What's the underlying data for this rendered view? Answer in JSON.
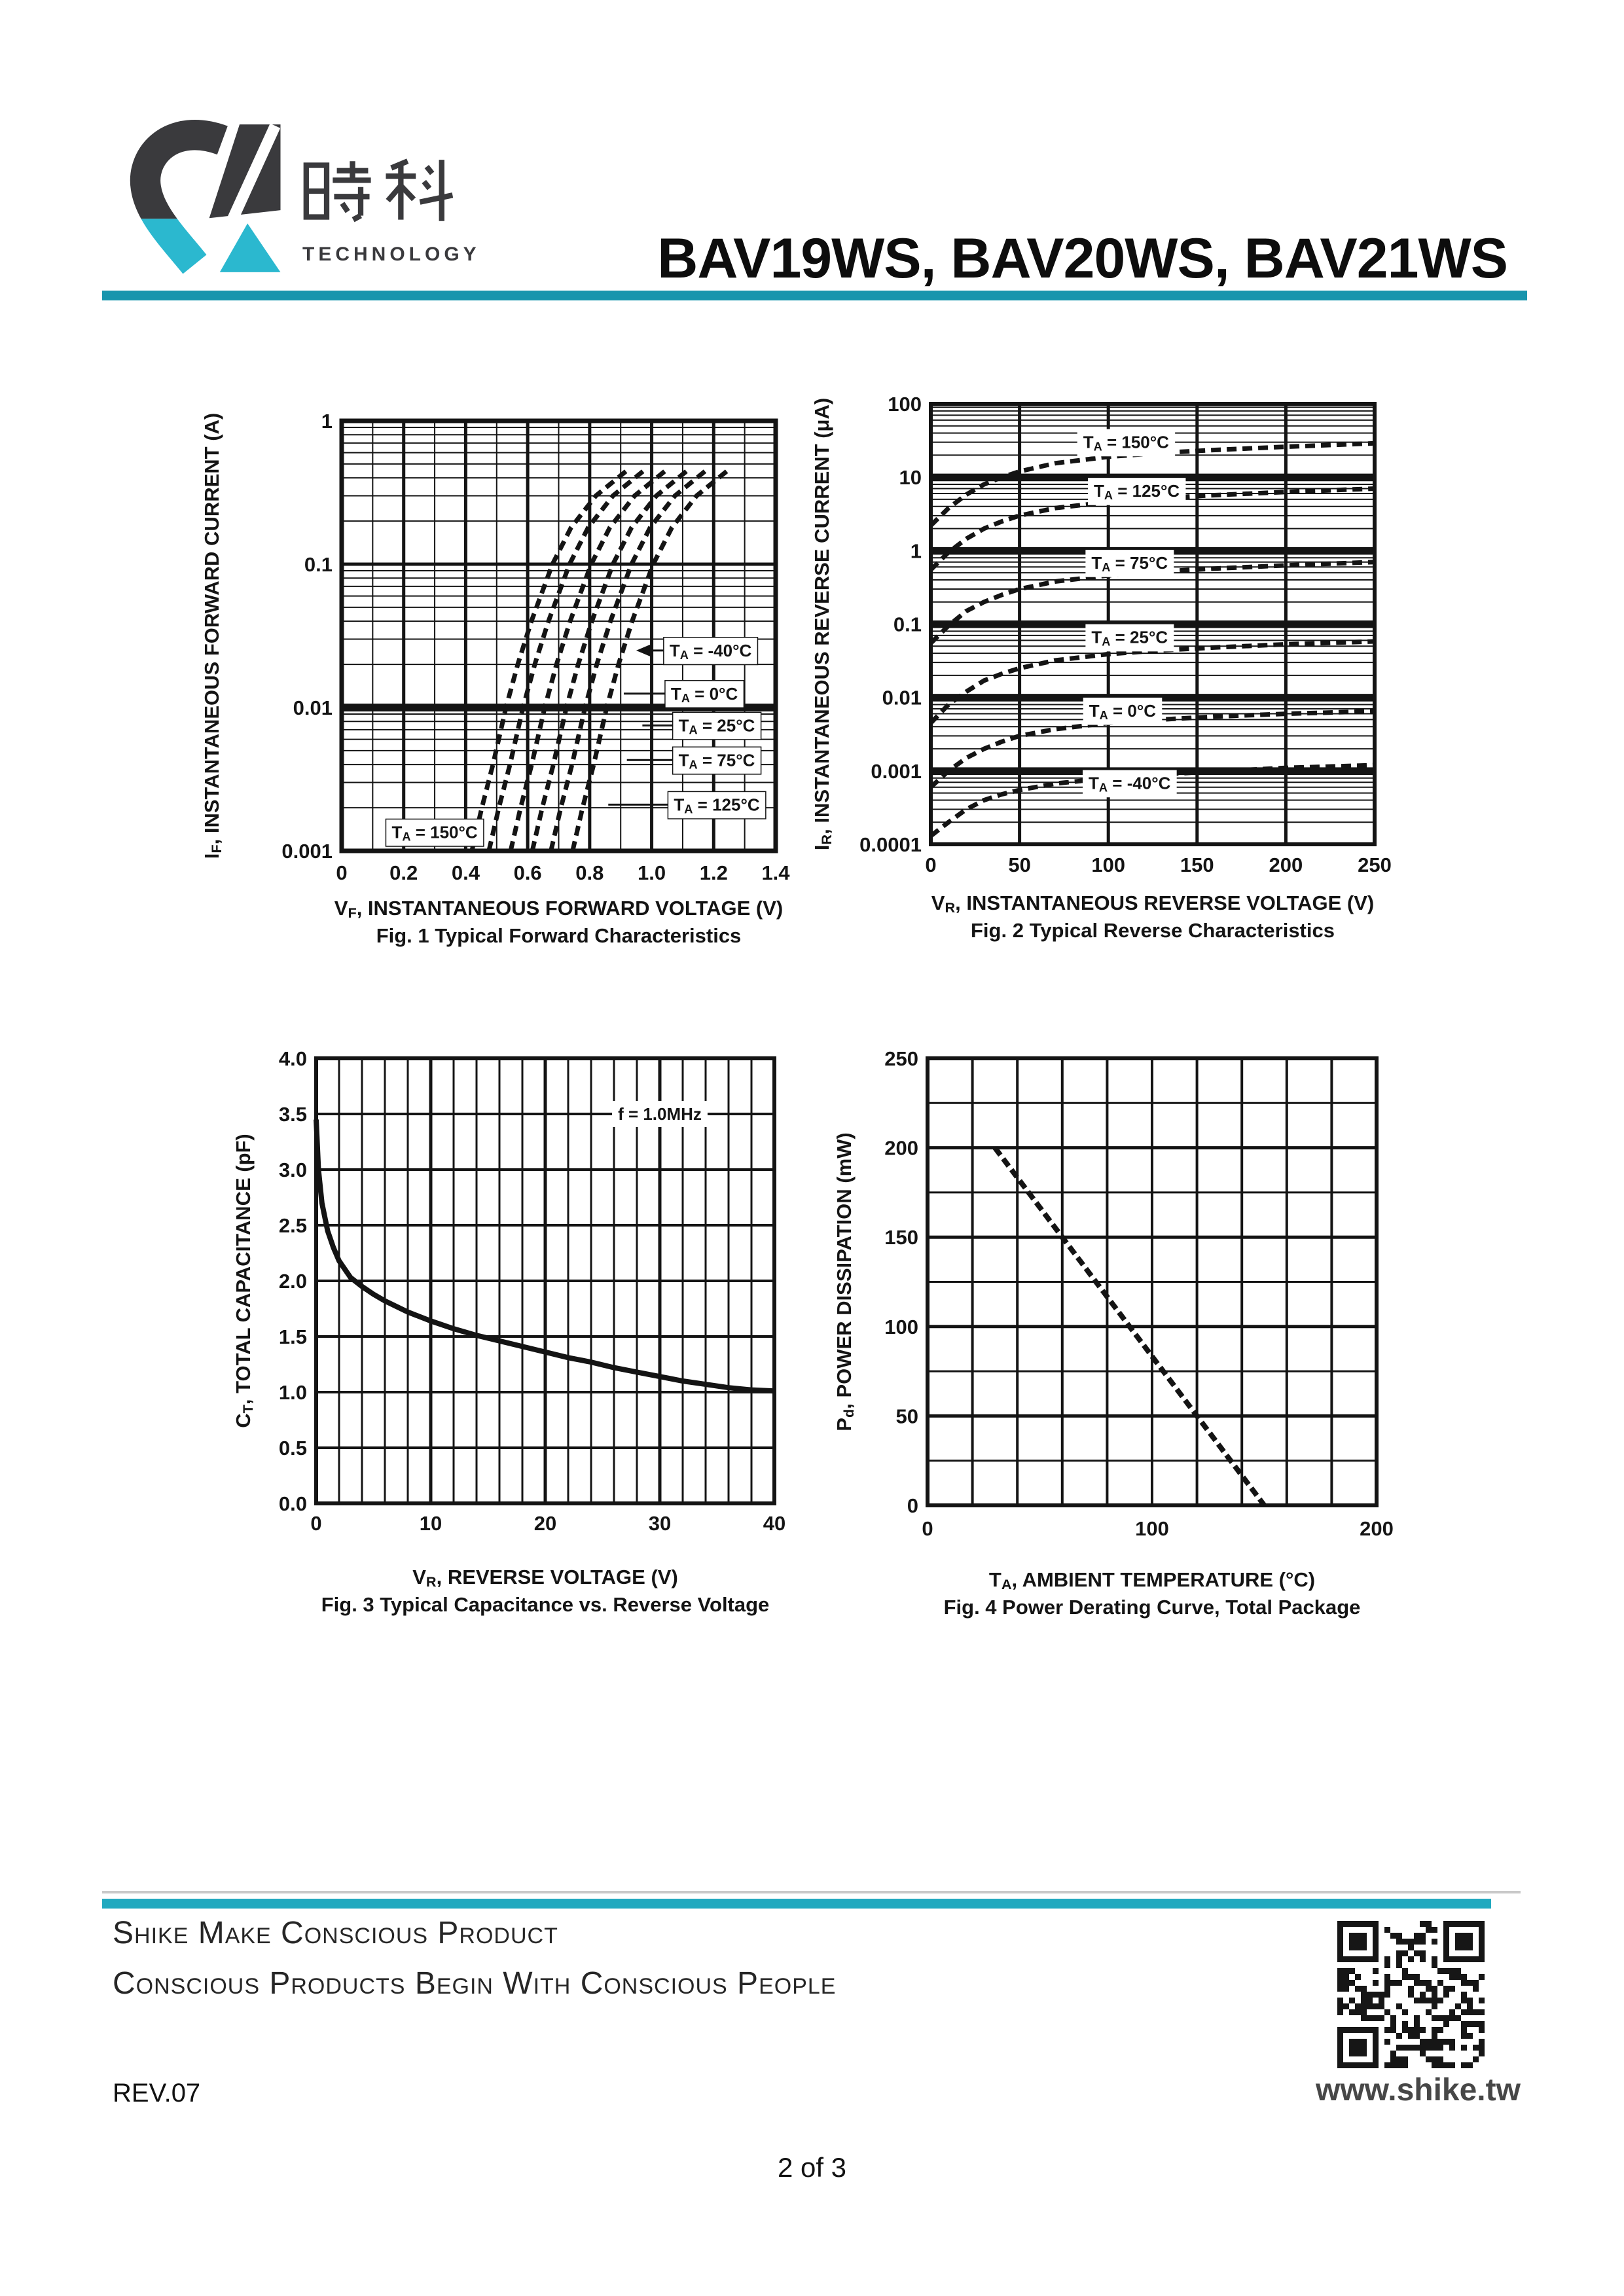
{
  "colors": {
    "accent_teal": "#1795ad",
    "accent_teal_light": "#21a9bf",
    "logo_dark": "#3a3a3d",
    "logo_cyan": "#2bb8cf",
    "ink": "#141414"
  },
  "header": {
    "logo_chinese": "時科",
    "logo_subtitle": "TECHNOLOGY",
    "title": "BAV19WS, BAV20WS, BAV21WS"
  },
  "chart_data": [
    {
      "id": "fig1",
      "type": "line",
      "title": "Fig. 1  Typical Forward Characteristics",
      "xlabel": "V~F~, INSTANTANEOUS FORWARD VOLTAGE (V)",
      "ylabel": "I~F~, INSTANTANEOUS FORWARD CURRENT (A)",
      "xlim": [
        0,
        1.4
      ],
      "ylim": [
        0.001,
        1
      ],
      "y_scale": "log",
      "grid": true,
      "legend_position": "in-plot-labels",
      "x_ticks": [
        {
          "v": 0,
          "label": "0"
        },
        {
          "v": 0.2,
          "label": "0.2"
        },
        {
          "v": 0.4,
          "label": "0.4"
        },
        {
          "v": 0.6,
          "label": "0.6"
        },
        {
          "v": 0.8,
          "label": "0.8"
        },
        {
          "v": 1.0,
          "label": "1.0"
        },
        {
          "v": 1.2,
          "label": "1.2"
        },
        {
          "v": 1.4,
          "label": "1.4"
        }
      ],
      "y_ticks": [
        {
          "v": 1,
          "label": "1"
        },
        {
          "v": 0.1,
          "label": "0.1"
        },
        {
          "v": 0.01,
          "label": "0.01"
        },
        {
          "v": 0.001,
          "label": "0.001"
        }
      ],
      "series": [
        {
          "name": "TA = 150°C",
          "points": [
            [
              0.42,
              0.001
            ],
            [
              0.452,
              0.002
            ],
            [
              0.488,
              0.004
            ],
            [
              0.53,
              0.01
            ],
            [
              0.568,
              0.02
            ],
            [
              0.612,
              0.04
            ],
            [
              0.68,
              0.1
            ],
            [
              0.74,
              0.18
            ],
            [
              0.82,
              0.3
            ],
            [
              0.92,
              0.45
            ]
          ]
        },
        {
          "name": "TA = 125°C",
          "points": [
            [
              0.475,
              0.001
            ],
            [
              0.507,
              0.002
            ],
            [
              0.543,
              0.004
            ],
            [
              0.585,
              0.01
            ],
            [
              0.623,
              0.02
            ],
            [
              0.667,
              0.04
            ],
            [
              0.735,
              0.1
            ],
            [
              0.795,
              0.18
            ],
            [
              0.875,
              0.3
            ],
            [
              0.975,
              0.45
            ]
          ]
        },
        {
          "name": "TA = 75°C",
          "points": [
            [
              0.545,
              0.001
            ],
            [
              0.577,
              0.002
            ],
            [
              0.613,
              0.004
            ],
            [
              0.655,
              0.01
            ],
            [
              0.693,
              0.02
            ],
            [
              0.737,
              0.04
            ],
            [
              0.805,
              0.1
            ],
            [
              0.865,
              0.18
            ],
            [
              0.945,
              0.3
            ],
            [
              1.045,
              0.45
            ]
          ]
        },
        {
          "name": "TA = 25°C",
          "points": [
            [
              0.615,
              0.001
            ],
            [
              0.647,
              0.002
            ],
            [
              0.683,
              0.004
            ],
            [
              0.725,
              0.01
            ],
            [
              0.763,
              0.02
            ],
            [
              0.807,
              0.04
            ],
            [
              0.875,
              0.1
            ],
            [
              0.935,
              0.18
            ],
            [
              1.015,
              0.3
            ],
            [
              1.115,
              0.45
            ]
          ]
        },
        {
          "name": "TA = 0°C",
          "points": [
            [
              0.675,
              0.001
            ],
            [
              0.707,
              0.002
            ],
            [
              0.743,
              0.004
            ],
            [
              0.785,
              0.01
            ],
            [
              0.823,
              0.02
            ],
            [
              0.867,
              0.04
            ],
            [
              0.935,
              0.1
            ],
            [
              0.995,
              0.18
            ],
            [
              1.075,
              0.3
            ],
            [
              1.175,
              0.45
            ]
          ]
        },
        {
          "name": "TA = -40°C",
          "points": [
            [
              0.745,
              0.001
            ],
            [
              0.777,
              0.002
            ],
            [
              0.813,
              0.004
            ],
            [
              0.855,
              0.01
            ],
            [
              0.893,
              0.02
            ],
            [
              0.937,
              0.04
            ],
            [
              1.005,
              0.1
            ],
            [
              1.065,
              0.18
            ],
            [
              1.145,
              0.3
            ],
            [
              1.245,
              0.45
            ]
          ]
        }
      ],
      "labels": [
        {
          "text": "T~A~ = -40°C",
          "x": 1.19,
          "y": 0.025,
          "leader_to_x": 0.95,
          "arrow": true
        },
        {
          "text": "T~A~ = 0°C",
          "x": 1.17,
          "y": 0.0125,
          "leader_to_x": 0.91
        },
        {
          "text": "T~A~ = 25°C",
          "x": 1.21,
          "y": 0.0075,
          "leader_to_x": 0.97
        },
        {
          "text": "T~A~ = 75°C",
          "x": 1.21,
          "y": 0.0043,
          "leader_to_x": 0.92
        },
        {
          "text": "T~A~ = 125°C",
          "x": 1.21,
          "y": 0.0021,
          "leader_to_x": 0.86
        },
        {
          "text": "T~A~ = 150°C",
          "x": 0.3,
          "y": 0.00135
        }
      ]
    },
    {
      "id": "fig2",
      "type": "line",
      "title": "Fig. 2  Typical Reverse Characteristics",
      "xlabel": "V~R~, INSTANTANEOUS REVERSE VOLTAGE (V)",
      "ylabel": "I~R~, INSTANTANEOUS REVERSE CURRENT (μA)",
      "xlim": [
        0,
        250
      ],
      "ylim": [
        0.0001,
        100
      ],
      "y_scale": "log",
      "grid": true,
      "legend_position": "in-plot-labels",
      "x_ticks": [
        {
          "v": 0,
          "label": "0"
        },
        {
          "v": 50,
          "label": "50"
        },
        {
          "v": 100,
          "label": "100"
        },
        {
          "v": 150,
          "label": "150"
        },
        {
          "v": 200,
          "label": "200"
        },
        {
          "v": 250,
          "label": "250"
        }
      ],
      "y_ticks": [
        {
          "v": 100,
          "label": "100"
        },
        {
          "v": 10,
          "label": "10"
        },
        {
          "v": 1,
          "label": "1"
        },
        {
          "v": 0.1,
          "label": "0.1"
        },
        {
          "v": 0.01,
          "label": "0.01"
        },
        {
          "v": 0.001,
          "label": "0.001"
        },
        {
          "v": 0.0001,
          "label": "0.0001"
        }
      ],
      "series": [
        {
          "name": "TA = 150°C",
          "points": [
            [
              0,
              2.2
            ],
            [
              10,
              3.8
            ],
            [
              20,
              5.8
            ],
            [
              30,
              8
            ],
            [
              40,
              10
            ],
            [
              50,
              12
            ],
            [
              70,
              15.5
            ],
            [
              100,
              19
            ],
            [
              130,
              21.5
            ],
            [
              160,
              23.5
            ],
            [
              200,
              26
            ],
            [
              250,
              29
            ]
          ]
        },
        {
          "name": "TA = 125°C",
          "points": [
            [
              0,
              0.55
            ],
            [
              10,
              0.95
            ],
            [
              20,
              1.45
            ],
            [
              30,
              2
            ],
            [
              40,
              2.5
            ],
            [
              50,
              3
            ],
            [
              70,
              3.8
            ],
            [
              100,
              4.6
            ],
            [
              130,
              5.2
            ],
            [
              160,
              5.7
            ],
            [
              200,
              6.3
            ],
            [
              250,
              7
            ]
          ]
        },
        {
          "name": "TA = 75°C",
          "points": [
            [
              0,
              0.055
            ],
            [
              10,
              0.095
            ],
            [
              20,
              0.15
            ],
            [
              30,
              0.2
            ],
            [
              40,
              0.25
            ],
            [
              50,
              0.3
            ],
            [
              70,
              0.38
            ],
            [
              100,
              0.46
            ],
            [
              130,
              0.52
            ],
            [
              160,
              0.57
            ],
            [
              200,
              0.63
            ],
            [
              250,
              0.7
            ]
          ]
        },
        {
          "name": "TA = 25°C",
          "points": [
            [
              0,
              0.0045
            ],
            [
              10,
              0.008
            ],
            [
              20,
              0.012
            ],
            [
              30,
              0.017
            ],
            [
              40,
              0.021
            ],
            [
              50,
              0.025
            ],
            [
              70,
              0.032
            ],
            [
              100,
              0.039
            ],
            [
              130,
              0.044
            ],
            [
              160,
              0.048
            ],
            [
              200,
              0.053
            ],
            [
              250,
              0.058
            ]
          ]
        },
        {
          "name": "TA = 0°C",
          "points": [
            [
              0,
              0.0006
            ],
            [
              10,
              0.001
            ],
            [
              20,
              0.0015
            ],
            [
              30,
              0.002
            ],
            [
              40,
              0.0025
            ],
            [
              50,
              0.003
            ],
            [
              70,
              0.0037
            ],
            [
              100,
              0.0045
            ],
            [
              130,
              0.005
            ],
            [
              160,
              0.0055
            ],
            [
              200,
              0.006
            ],
            [
              250,
              0.0065
            ]
          ]
        },
        {
          "name": "TA = -40°C",
          "points": [
            [
              0,
              0.00013
            ],
            [
              10,
              0.0002
            ],
            [
              20,
              0.0003
            ],
            [
              30,
              0.0004
            ],
            [
              40,
              0.00048
            ],
            [
              50,
              0.00055
            ],
            [
              70,
              0.00067
            ],
            [
              100,
              0.0008
            ],
            [
              130,
              0.0009
            ],
            [
              160,
              0.00098
            ],
            [
              200,
              0.0011
            ],
            [
              250,
              0.0012
            ]
          ]
        }
      ],
      "labels": [
        {
          "text": "T~A~ = 150°C",
          "x": 110,
          "y": 30
        },
        {
          "text": "T~A~ = 125°C",
          "x": 116,
          "y": 6.5
        },
        {
          "text": "T~A~ = 75°C",
          "x": 112,
          "y": 0.68
        },
        {
          "text": "T~A~ = 25°C",
          "x": 112,
          "y": 0.066
        },
        {
          "text": "T~A~ = 0°C",
          "x": 108,
          "y": 0.0066
        },
        {
          "text": "T~A~ = -40°C",
          "x": 112,
          "y": 0.00068
        }
      ]
    },
    {
      "id": "fig3",
      "type": "line",
      "title": "Fig. 3  Typical Capacitance vs. Reverse Voltage",
      "xlabel": "V~R~, REVERSE VOLTAGE (V)",
      "ylabel": "C~T~, TOTAL CAPACITANCE (pF)",
      "xlim": [
        0,
        40
      ],
      "ylim": [
        0,
        4
      ],
      "y_scale": "linear",
      "grid": true,
      "x_ticks": [
        {
          "v": 0,
          "label": "0"
        },
        {
          "v": 10,
          "label": "10"
        },
        {
          "v": 20,
          "label": "20"
        },
        {
          "v": 30,
          "label": "30"
        },
        {
          "v": 40,
          "label": "40"
        }
      ],
      "y_ticks": [
        {
          "v": 4.0,
          "label": "4.0"
        },
        {
          "v": 3.5,
          "label": "3.5"
        },
        {
          "v": 3.0,
          "label": "3.0"
        },
        {
          "v": 2.5,
          "label": "2.5"
        },
        {
          "v": 2.0,
          "label": "2.0"
        },
        {
          "v": 1.5,
          "label": "1.5"
        },
        {
          "v": 1.0,
          "label": "1.0"
        },
        {
          "v": 0.5,
          "label": "0.5"
        },
        {
          "v": 0.0,
          "label": "0.0"
        }
      ],
      "series": [
        {
          "name": "CT vs VR at f = 1.0MHz",
          "points": [
            [
              0,
              3.45
            ],
            [
              0.2,
              3.0
            ],
            [
              0.5,
              2.7
            ],
            [
              1,
              2.45
            ],
            [
              1.5,
              2.3
            ],
            [
              2,
              2.18
            ],
            [
              3,
              2.03
            ],
            [
              4,
              1.95
            ],
            [
              5,
              1.88
            ],
            [
              6,
              1.82
            ],
            [
              8,
              1.72
            ],
            [
              10,
              1.64
            ],
            [
              12,
              1.57
            ],
            [
              14,
              1.51
            ],
            [
              16,
              1.46
            ],
            [
              18,
              1.41
            ],
            [
              20,
              1.36
            ],
            [
              22,
              1.31
            ],
            [
              24,
              1.27
            ],
            [
              26,
              1.22
            ],
            [
              28,
              1.18
            ],
            [
              30,
              1.14
            ],
            [
              32,
              1.1
            ],
            [
              34,
              1.07
            ],
            [
              36,
              1.04
            ],
            [
              38,
              1.02
            ],
            [
              40,
              1.01
            ]
          ]
        }
      ],
      "labels": [
        {
          "text": "f = 1.0MHz",
          "x": 30,
          "y": 3.5
        }
      ]
    },
    {
      "id": "fig4",
      "type": "line",
      "title": "Fig. 4  Power Derating Curve, Total Package",
      "xlabel": "T~A~, AMBIENT TEMPERATURE (°C)",
      "ylabel": "P~d~, POWER DISSIPATION (mW)",
      "xlim": [
        0,
        200
      ],
      "ylim": [
        0,
        250
      ],
      "y_scale": "linear",
      "grid": true,
      "x_ticks": [
        {
          "v": 0,
          "label": "0"
        },
        {
          "v": 100,
          "label": "100"
        },
        {
          "v": 200,
          "label": "200"
        }
      ],
      "y_ticks": [
        {
          "v": 250,
          "label": "250"
        },
        {
          "v": 200,
          "label": "200"
        },
        {
          "v": 150,
          "label": "150"
        },
        {
          "v": 100,
          "label": "100"
        },
        {
          "v": 50,
          "label": "50"
        },
        {
          "v": 0,
          "label": "0"
        }
      ],
      "series": [
        {
          "name": "Power derating",
          "points": [
            [
              30,
              200
            ],
            [
              150,
              0
            ]
          ]
        }
      ],
      "labels": []
    }
  ],
  "footer": {
    "slogan_line1": "Shike Make Conscious Product",
    "slogan_line2": "Conscious Products Begin With Conscious People",
    "revision": "REV.07",
    "website": "www.shike.tw",
    "page_number": "2 of 3"
  }
}
